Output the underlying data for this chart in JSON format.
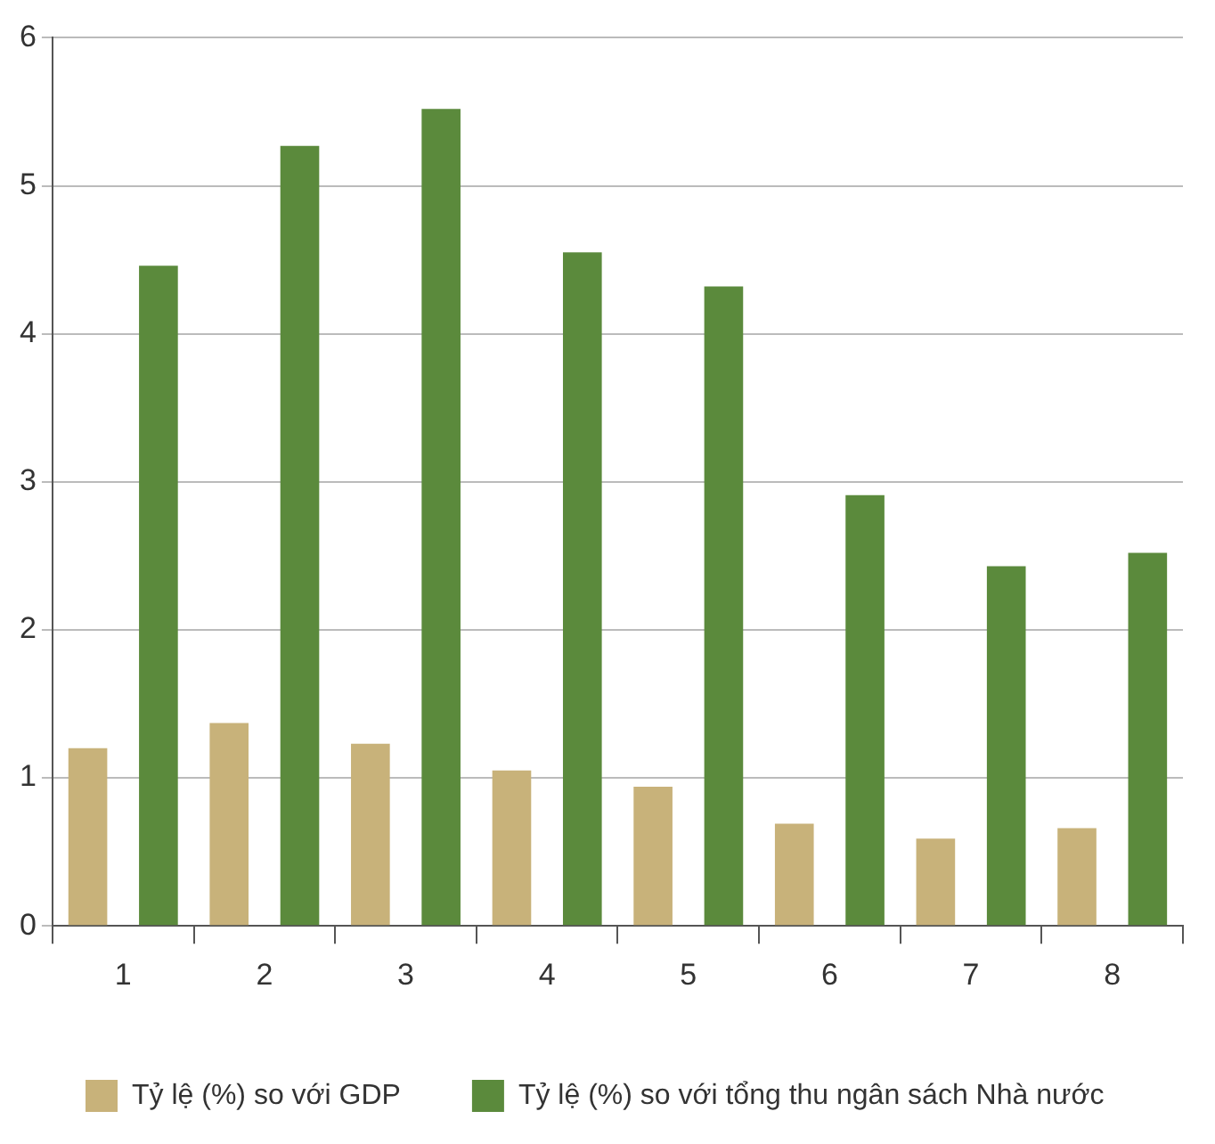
{
  "chart_data": {
    "type": "bar",
    "categories": [
      "1",
      "2",
      "3",
      "4",
      "5",
      "6",
      "7",
      "8"
    ],
    "series": [
      {
        "name": "Tỷ lệ (%) so với GDP",
        "color": "#c8b27a",
        "values": [
          1.2,
          1.37,
          1.23,
          1.05,
          0.94,
          0.69,
          0.59,
          0.66
        ]
      },
      {
        "name": "Tỷ lệ (%) so với tổng thu ngân sách Nhà nước",
        "color": "#5b8a3c",
        "values": [
          4.46,
          5.27,
          5.52,
          4.55,
          4.32,
          2.91,
          2.43,
          2.52
        ]
      }
    ],
    "ylim": [
      0,
      6
    ],
    "yticks": [
      0,
      1,
      2,
      3,
      4,
      5,
      6
    ],
    "grid": "y",
    "legend": "bottom"
  }
}
